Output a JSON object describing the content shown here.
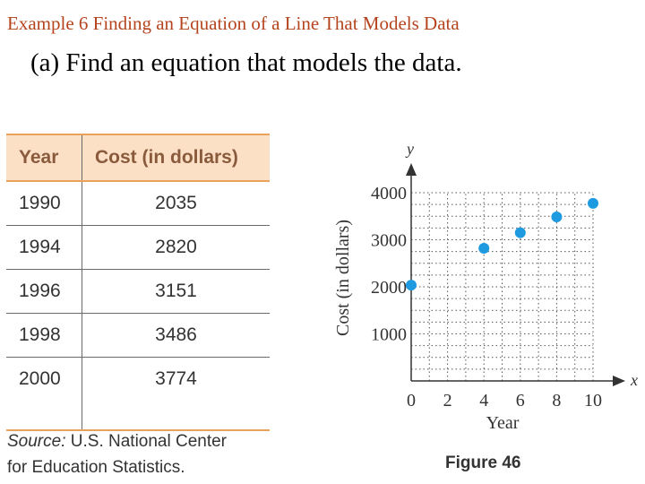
{
  "slide": {
    "title": "Example 6 Finding an Equation of a Line That Models Data",
    "subtitle": "(a)  Find an equation that models the data."
  },
  "table": {
    "headers": [
      "Year",
      "Cost (in dollars)"
    ],
    "rows": [
      [
        "1990",
        "2035"
      ],
      [
        "1994",
        "2820"
      ],
      [
        "1996",
        "3151"
      ],
      [
        "1998",
        "3486"
      ],
      [
        "2000",
        "3774"
      ]
    ],
    "header_color": "#fbe0c6",
    "rule_color": "#e9a25b"
  },
  "source": {
    "label": "Source:",
    "line1": "U.S. National Center",
    "line2": "for Education Statistics."
  },
  "figure_label": "Figure 46",
  "chart_data": {
    "type": "scatter",
    "x": [
      0,
      4,
      6,
      8,
      10
    ],
    "y": [
      2035,
      2820,
      3151,
      3486,
      3774
    ],
    "xlabel": "Year",
    "ylabel": "Cost (in dollars)",
    "x_axis_var": "x",
    "y_axis_var": "y",
    "x_ticks": [
      "0",
      "2",
      "4",
      "6",
      "8",
      "10"
    ],
    "y_ticks": [
      "1000",
      "2000",
      "3000",
      "4000"
    ],
    "xlim": [
      0,
      10
    ],
    "ylim": [
      0,
      4000
    ],
    "grid": true,
    "point_color": "#1e9be0"
  }
}
